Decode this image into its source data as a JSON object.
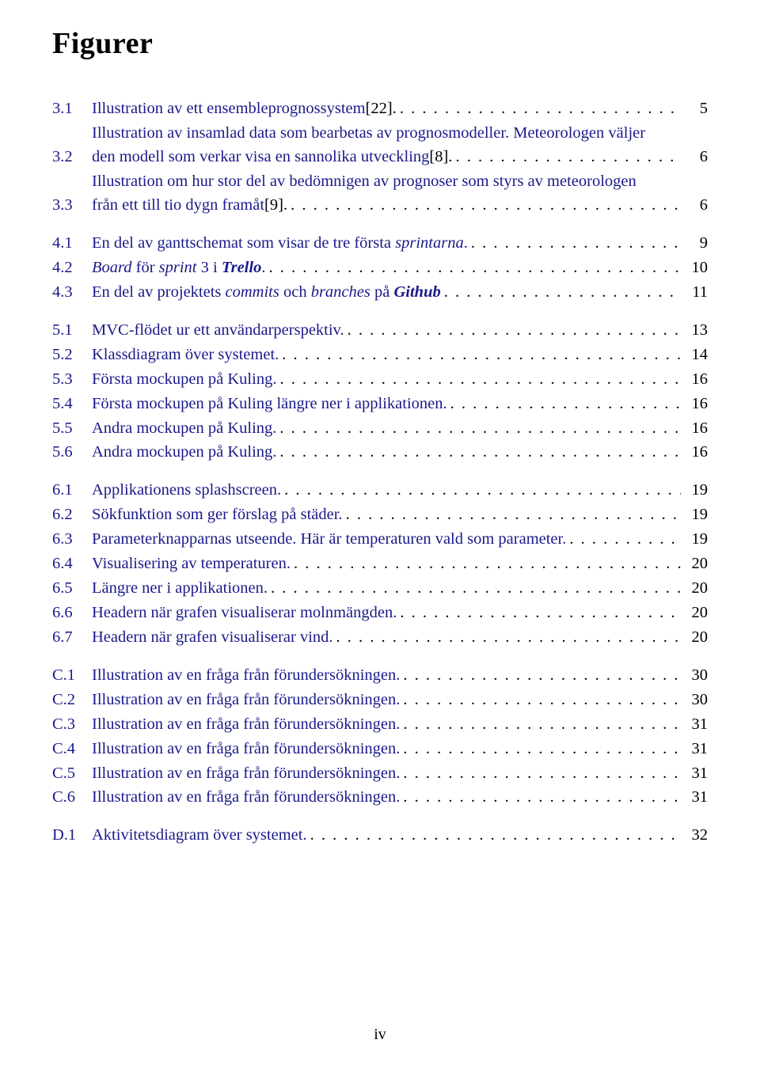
{
  "title": "Figurer",
  "link_color": "#1a1a8a",
  "text_color": "#000000",
  "footer": "iv",
  "groups": [
    {
      "entries": [
        {
          "num": "3.1",
          "lines": [
            "Illustration av ett ensembleprognossystem[22]."
          ],
          "page": "5",
          "ref_suffix": "[22]."
        },
        {
          "num": "3.2",
          "lines": [
            "Illustration av insamlad data som bearbetas av prognosmodeller. Meteorologen väljer",
            "den modell som verkar visa en sannolika utveckling[8]."
          ],
          "page": "6",
          "ref_suffix": "[8]."
        },
        {
          "num": "3.3",
          "lines": [
            "Illustration om hur stor del av bedömnigen av prognoser som styrs av meteorologen",
            "från ett till tio dygn framåt[9]."
          ],
          "page": "6",
          "ref_suffix": "[9]."
        }
      ]
    },
    {
      "entries": [
        {
          "num": "4.1",
          "lines_html": [
            "En del av ganttschemat som visar de tre första <em>sprintarna</em>."
          ],
          "page": "9"
        },
        {
          "num": "4.2",
          "lines_html": [
            "<em>Board</em> för <em>sprint</em> 3 i <em><strong>Trello</strong></em>."
          ],
          "page": "10"
        },
        {
          "num": "4.3",
          "lines_html": [
            "En del av projektets <em>commits</em> och <em>branches</em> på <em><strong>Github</strong></em>"
          ],
          "page": "11"
        }
      ]
    },
    {
      "entries": [
        {
          "num": "5.1",
          "lines": [
            "MVC-flödet ur ett användarperspektiv."
          ],
          "page": "13"
        },
        {
          "num": "5.2",
          "lines": [
            "Klassdiagram över systemet."
          ],
          "page": "14"
        },
        {
          "num": "5.3",
          "lines": [
            "Första mockupen på Kuling."
          ],
          "page": "16"
        },
        {
          "num": "5.4",
          "lines": [
            "Första mockupen på Kuling längre ner i applikationen."
          ],
          "page": "16"
        },
        {
          "num": "5.5",
          "lines": [
            "Andra mockupen på Kuling."
          ],
          "page": "16"
        },
        {
          "num": "5.6",
          "lines": [
            "Andra mockupen på Kuling."
          ],
          "page": "16"
        }
      ]
    },
    {
      "entries": [
        {
          "num": "6.1",
          "lines": [
            "Applikationens splashscreen."
          ],
          "page": "19"
        },
        {
          "num": "6.2",
          "lines": [
            "Sökfunktion som ger förslag på städer."
          ],
          "page": "19"
        },
        {
          "num": "6.3",
          "lines": [
            "Parameterknapparnas utseende. Här är temperaturen vald som parameter."
          ],
          "page": "19"
        },
        {
          "num": "6.4",
          "lines": [
            "Visualisering av temperaturen."
          ],
          "page": "20"
        },
        {
          "num": "6.5",
          "lines": [
            "Längre ner i applikationen."
          ],
          "page": "20"
        },
        {
          "num": "6.6",
          "lines": [
            "Headern när grafen visualiserar molnmängden."
          ],
          "page": "20"
        },
        {
          "num": "6.7",
          "lines": [
            "Headern när grafen visualiserar vind."
          ],
          "page": "20"
        }
      ]
    },
    {
      "entries": [
        {
          "num": "C.1",
          "lines": [
            "Illustration av en fråga från förundersökningen."
          ],
          "page": "30"
        },
        {
          "num": "C.2",
          "lines": [
            "Illustration av en fråga från förundersökningen."
          ],
          "page": "30"
        },
        {
          "num": "C.3",
          "lines": [
            "Illustration av en fråga från förundersökningen."
          ],
          "page": "31"
        },
        {
          "num": "C.4",
          "lines": [
            "Illustration av en fråga från förundersökningen."
          ],
          "page": "31"
        },
        {
          "num": "C.5",
          "lines": [
            "Illustration av en fråga från förundersökningen."
          ],
          "page": "31"
        },
        {
          "num": "C.6",
          "lines": [
            "Illustration av en fråga från förundersökningen."
          ],
          "page": "31"
        }
      ]
    },
    {
      "entries": [
        {
          "num": "D.1",
          "lines": [
            "Aktivitetsdiagram över systemet."
          ],
          "page": "32"
        }
      ]
    }
  ]
}
